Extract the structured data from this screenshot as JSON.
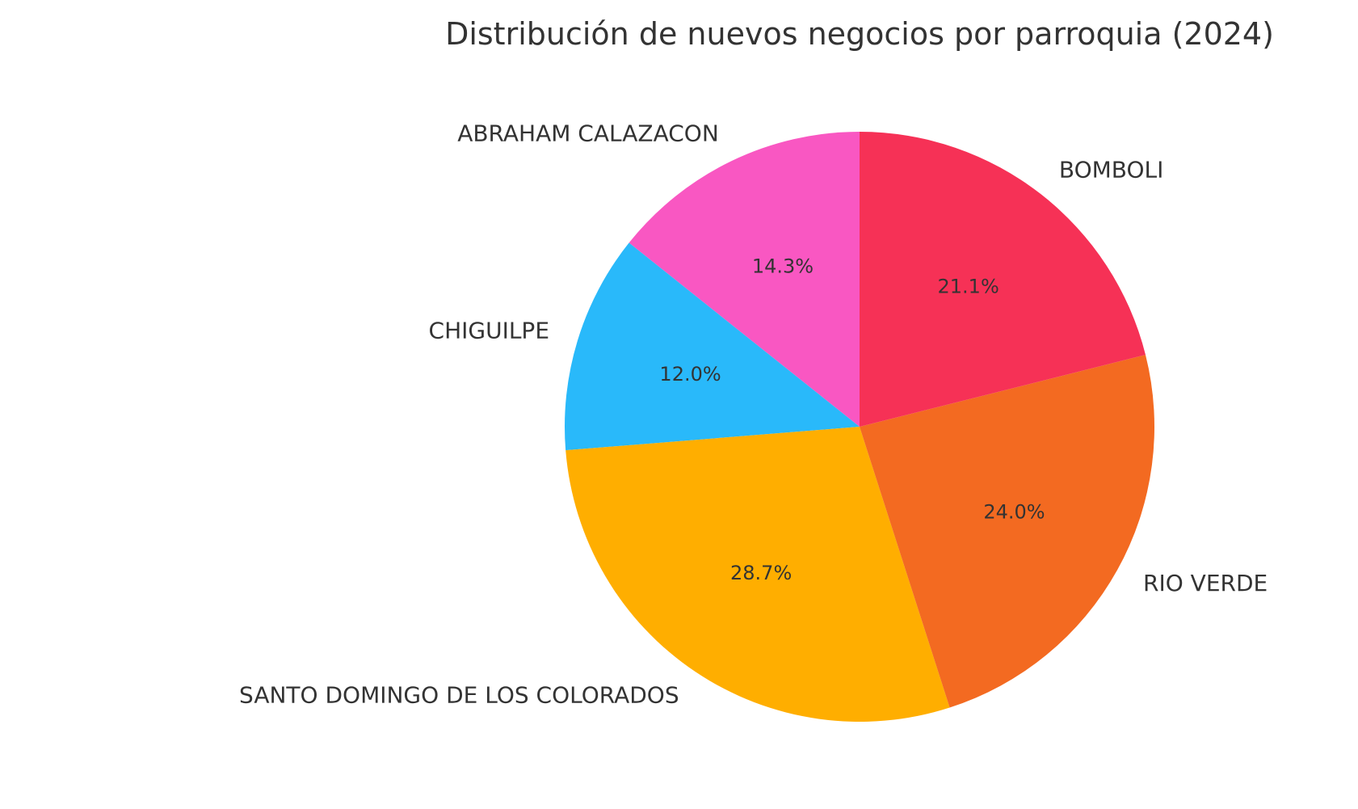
{
  "chart_data": {
    "type": "pie",
    "title": "Distribución de nuevos negocios por parroquia (2024)",
    "start_angle_deg": 90,
    "direction": "counterclockwise",
    "slices": [
      {
        "label": "ABRAHAM CALAZACON",
        "value": 14.3,
        "pct_label": "14.3%",
        "color": "#f957c2"
      },
      {
        "label": "CHIGUILPE",
        "value": 12.0,
        "pct_label": "12.0%",
        "color": "#29b9fa"
      },
      {
        "label": "SANTO DOMINGO DE LOS COLORADOS",
        "value": 28.7,
        "pct_label": "28.7%",
        "color": "#ffae00"
      },
      {
        "label": "RIO VERDE",
        "value": 24.0,
        "pct_label": "24.0%",
        "color": "#f36a21"
      },
      {
        "label": "BOMBOLI",
        "value": 21.1,
        "pct_label": "21.1%",
        "color": "#f63156"
      }
    ]
  }
}
